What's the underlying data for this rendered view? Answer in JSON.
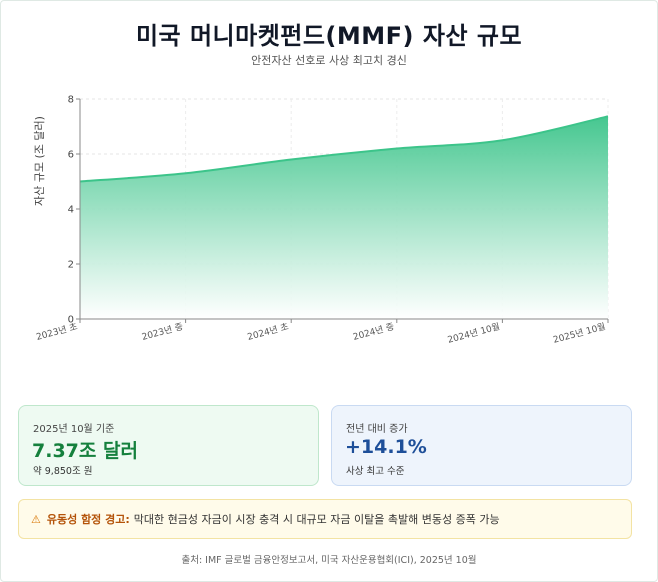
{
  "header": {
    "title": "미국 머니마켓펀드(MMF) 자산 규모",
    "subtitle": "안전자산 선호로 사상 최고치 경신"
  },
  "chart_data": {
    "type": "area",
    "x": [
      "2023년 초",
      "2023년 중",
      "2024년 초",
      "2024년 중",
      "2024년 10월",
      "2025년 10월"
    ],
    "series": [
      {
        "values": [
          5.0,
          5.3,
          5.8,
          6.2,
          6.5,
          7.37
        ]
      }
    ],
    "xlabel": "",
    "ylabel": "자산 규모 (조 달러)",
    "ylim": [
      0,
      8
    ],
    "yticks": [
      0,
      2,
      4,
      6,
      8
    ],
    "grid": true,
    "colors": {
      "line": "#3cc48a",
      "fill_top": "#3cc48a",
      "fill_bottom": "#ffffff"
    }
  },
  "cards": [
    {
      "label": "2025년 10월 기준",
      "value": "7.37조 달러",
      "sub": "약 9,850조 원"
    },
    {
      "label": "전년 대비 증가",
      "value": "+14.1%",
      "sub": "사상 최고 수준"
    }
  ],
  "warning": {
    "icon": "warning-icon",
    "label": "유동성 함정 경고:",
    "text": "막대한 현금성 자금이 시장 충격 시 대규모 자금 이탈을 촉발해 변동성 증폭 가능"
  },
  "source": "출처: IMF 글로벌 금융안정보고서, 미국 자산운용협회(ICI), 2025년 10월"
}
